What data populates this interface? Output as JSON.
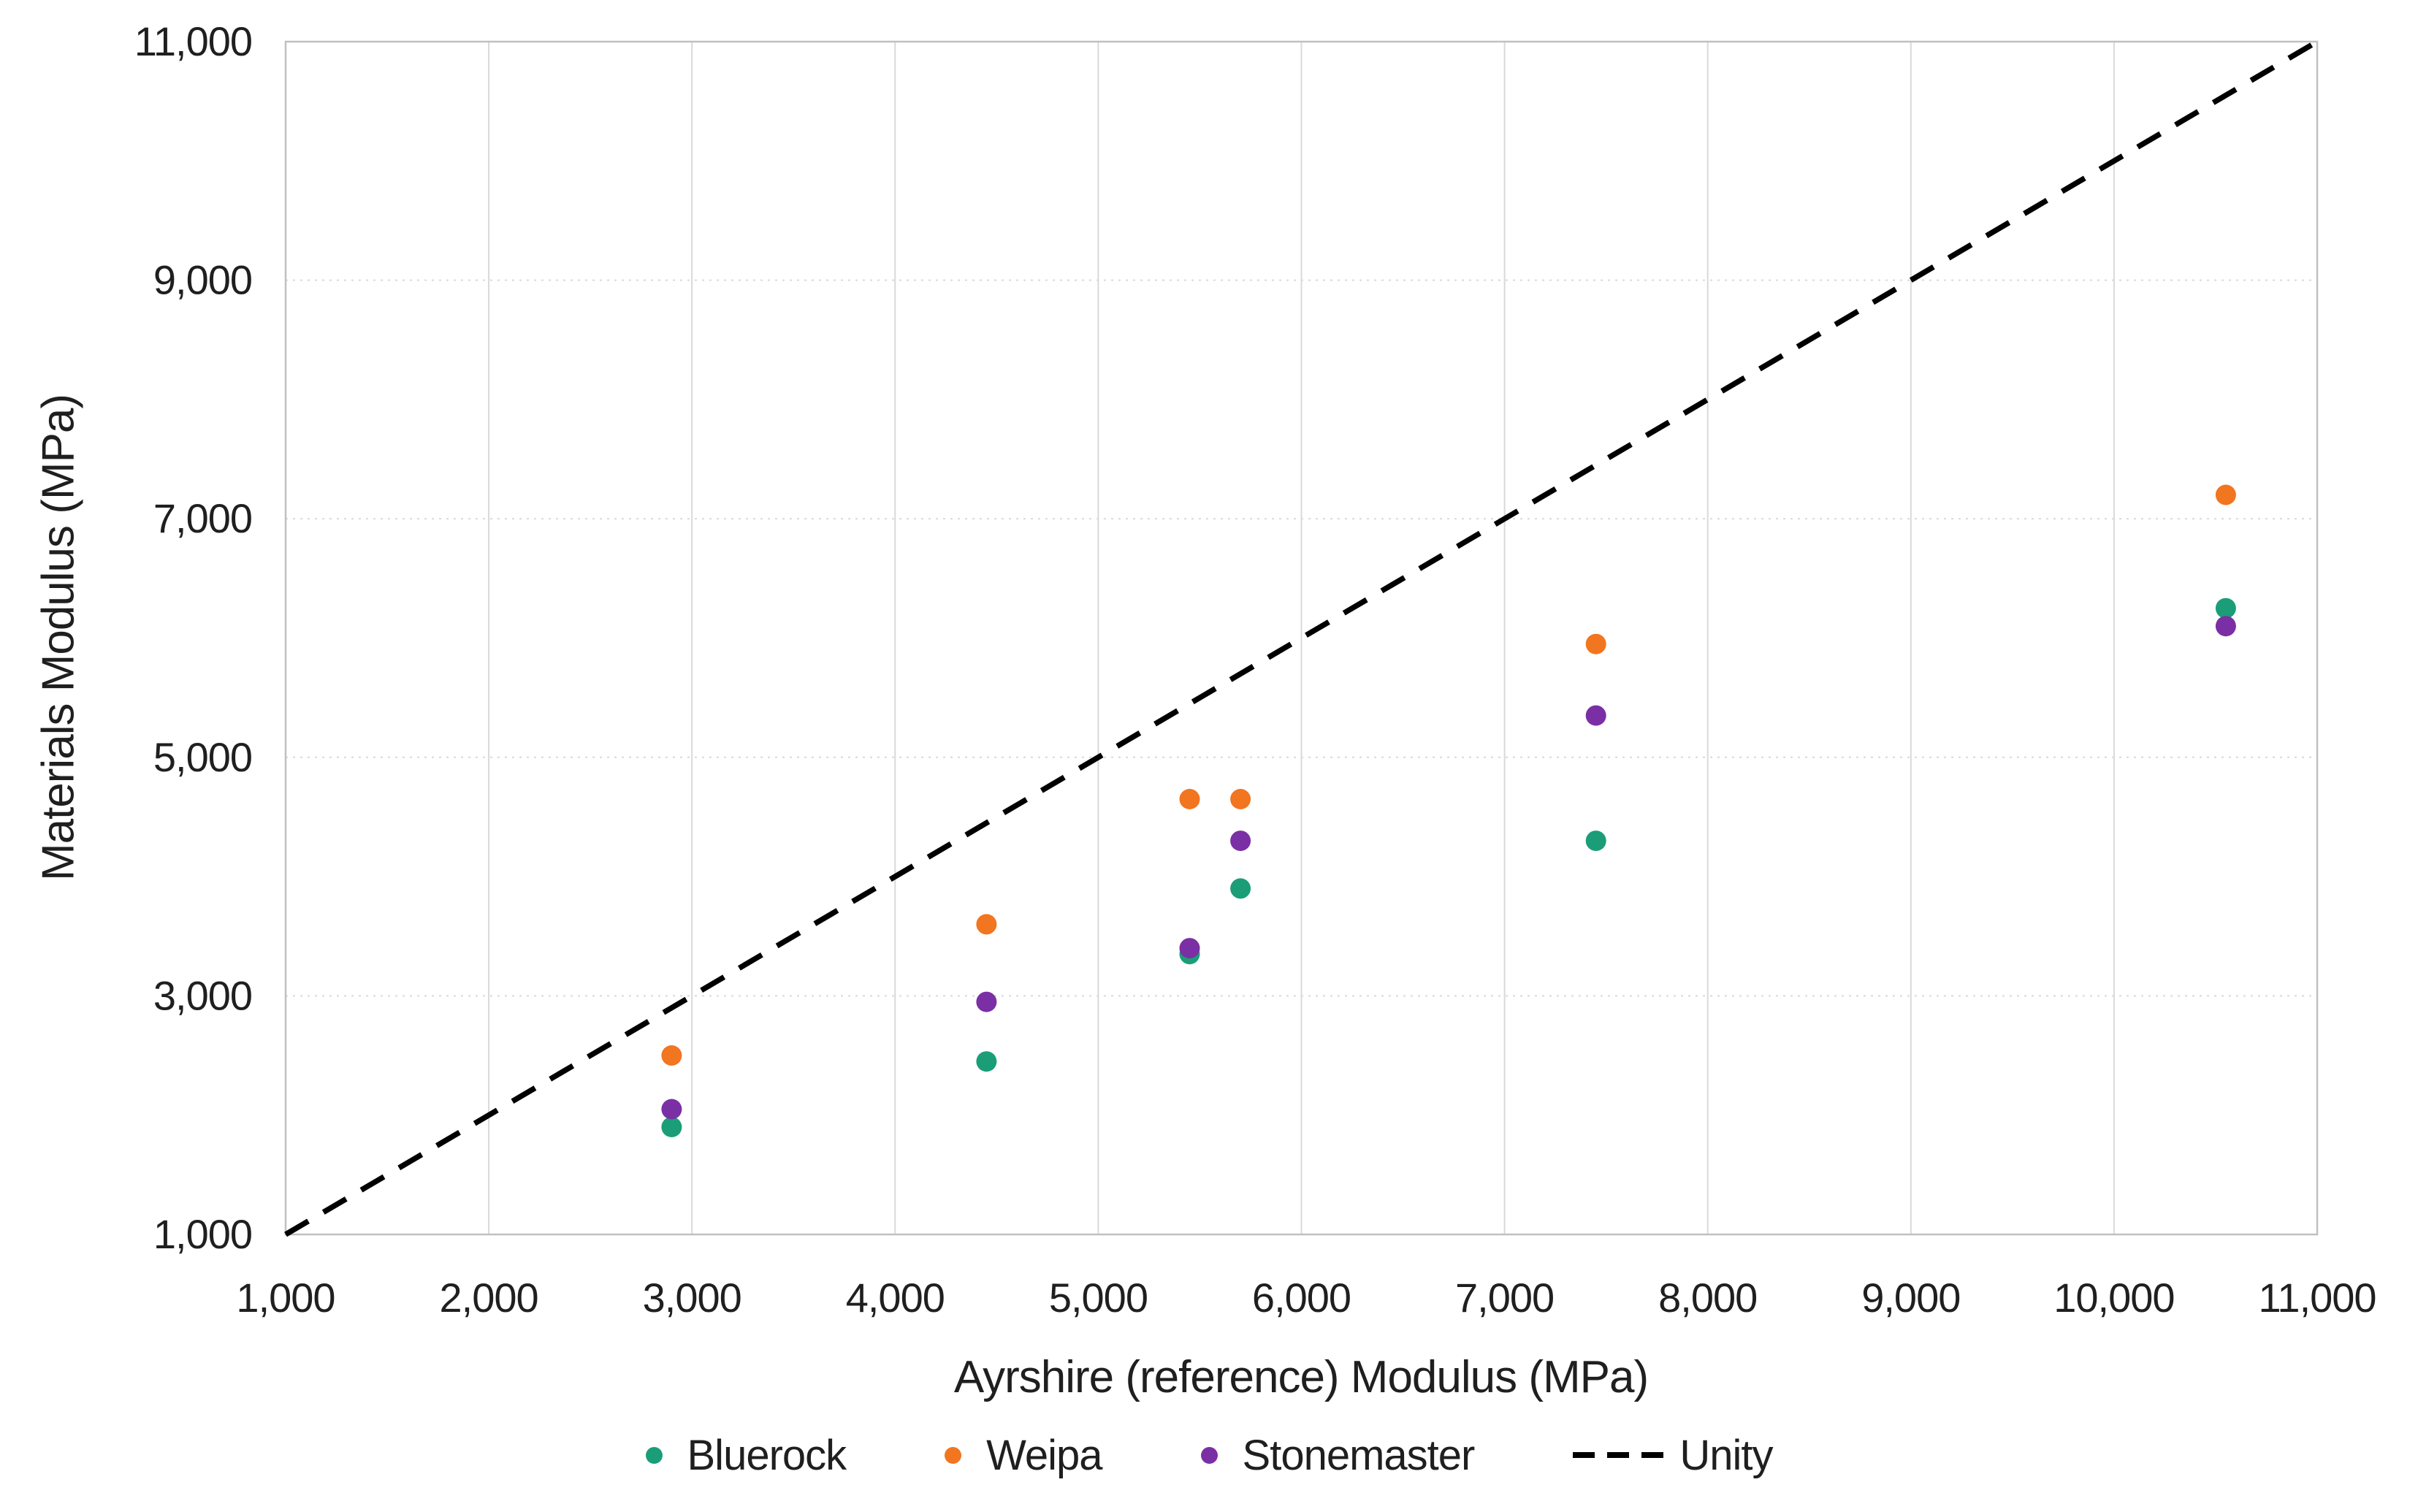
{
  "figure": {
    "background": "#FFFFFF",
    "text_color": "#1F1F1F",
    "grid_color": "#D9D9D9",
    "border_color": "#C0C0C0"
  },
  "chart_data": {
    "type": "scatter",
    "title": "",
    "xlabel": "Ayrshire (reference) Modulus (MPa)",
    "ylabel": "Materials Modulus (MPa)",
    "xlim": [
      1000,
      11000
    ],
    "ylim": [
      1000,
      11000
    ],
    "x_ticks": [
      1000,
      2000,
      3000,
      4000,
      5000,
      6000,
      7000,
      8000,
      9000,
      10000,
      11000
    ],
    "x_tick_labels": [
      "1,000",
      "2,000",
      "3,000",
      "4,000",
      "5,000",
      "6,000",
      "7,000",
      "8,000",
      "9,000",
      "10,000",
      "11,000"
    ],
    "y_ticks": [
      1000,
      3000,
      5000,
      7000,
      9000,
      11000
    ],
    "y_tick_labels": [
      "1,000",
      "3,000",
      "5,000",
      "7,000",
      "9,000",
      "11,000"
    ],
    "grid": {
      "vertical_every": 1000,
      "vertical_style": "solid",
      "horizontal_every": 2000,
      "horizontal_style": "dotted"
    },
    "legend_position": "bottom",
    "series": [
      {
        "name": "Bluerock",
        "color": "#1B9E77",
        "marker": "circle",
        "points": [
          [
            2900,
            1900
          ],
          [
            4450,
            2450
          ],
          [
            5450,
            3350
          ],
          [
            5700,
            3900
          ],
          [
            7450,
            4300
          ],
          [
            10550,
            6250
          ]
        ]
      },
      {
        "name": "Weipa",
        "color": "#F2751F",
        "marker": "circle",
        "points": [
          [
            2900,
            2500
          ],
          [
            4450,
            3600
          ],
          [
            5450,
            4650
          ],
          [
            5700,
            4650
          ],
          [
            7450,
            5950
          ],
          [
            10550,
            7200
          ]
        ]
      },
      {
        "name": "Stonemaster",
        "color": "#7B2FA5",
        "marker": "circle",
        "points": [
          [
            2900,
            2050
          ],
          [
            4450,
            2950
          ],
          [
            5450,
            3400
          ],
          [
            5700,
            4300
          ],
          [
            7450,
            5350
          ],
          [
            10550,
            6100
          ]
        ]
      }
    ],
    "reference_line": {
      "name": "Unity",
      "color": "#000000",
      "style": "dashed",
      "points": [
        [
          1000,
          1000
        ],
        [
          11000,
          11000
        ]
      ]
    }
  }
}
